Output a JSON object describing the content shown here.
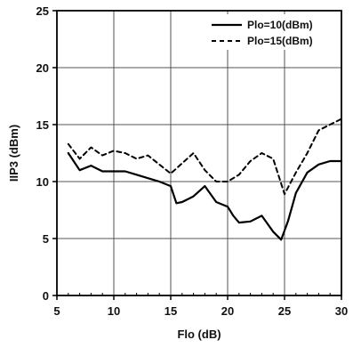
{
  "chart_data": {
    "type": "line",
    "title": "",
    "xlabel": "Flo (dB)",
    "ylabel": "IIP3 (dBm)",
    "xlim": [
      5,
      30
    ],
    "ylim": [
      0,
      25
    ],
    "xticks": [
      "5",
      "10",
      "15",
      "20",
      "25",
      "30"
    ],
    "yticks": [
      "0",
      "5",
      "10",
      "15",
      "20",
      "25"
    ],
    "grid": true,
    "legend_position": "top-right",
    "series": [
      {
        "name": "Plo=10(dBm)",
        "style": "solid",
        "color": "#000000",
        "x": [
          6,
          7,
          8,
          9,
          10,
          11,
          12,
          13,
          14,
          15,
          15.5,
          16,
          17,
          18,
          19,
          20,
          20.5,
          21,
          22,
          23,
          24,
          24.7,
          25.3,
          26,
          27,
          28,
          29,
          30
        ],
        "y": [
          12.5,
          11.0,
          11.4,
          10.9,
          10.9,
          10.9,
          10.6,
          10.3,
          10.0,
          9.6,
          8.1,
          8.2,
          8.7,
          9.6,
          8.2,
          7.8,
          7.0,
          6.4,
          6.5,
          7.0,
          5.6,
          4.9,
          6.5,
          9.0,
          10.8,
          11.5,
          11.8,
          11.8
        ]
      },
      {
        "name": "Plo=15(dBm)",
        "style": "dashed",
        "color": "#000000",
        "x": [
          6,
          7,
          8,
          9,
          10,
          11,
          12,
          13,
          14,
          15,
          16,
          17,
          18,
          19,
          20,
          21,
          22,
          23,
          24,
          25,
          26,
          27,
          28,
          29,
          30
        ],
        "y": [
          13.3,
          12.0,
          13.0,
          12.3,
          12.7,
          12.5,
          12.0,
          12.3,
          11.5,
          10.7,
          11.6,
          12.5,
          11.0,
          10.0,
          10.0,
          10.6,
          11.8,
          12.5,
          12.0,
          8.9,
          10.8,
          12.5,
          14.5,
          15.0,
          15.5
        ]
      }
    ]
  }
}
